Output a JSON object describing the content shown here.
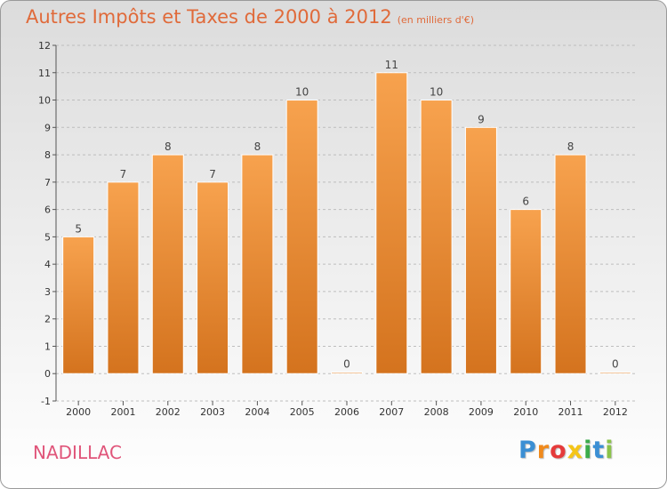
{
  "header": {
    "title": "Autres Impôts et Taxes de 2000 à 2012",
    "unit": "(en milliers d'€)"
  },
  "footer": {
    "commune": "NADILLAC",
    "brand_letters": [
      {
        "char": "P",
        "color": "#3b8fd4"
      },
      {
        "char": "r",
        "color": "#f08a1c"
      },
      {
        "char": "o",
        "color": "#e53b3b"
      },
      {
        "char": "x",
        "color": "#f5c518"
      },
      {
        "char": "i",
        "color": "#3bab4a"
      },
      {
        "char": "t",
        "color": "#3b8fd4"
      },
      {
        "char": "i",
        "color": "#8bc34a"
      }
    ]
  },
  "colors": {
    "bar_top": "#f7a24e",
    "bar_bottom": "#d4731e",
    "grid": "#bdbdbd",
    "title": "#e06a3a",
    "commune": "#e0557a"
  },
  "chart_data": {
    "type": "bar",
    "categories": [
      "2000",
      "2001",
      "2002",
      "2003",
      "2004",
      "2005",
      "2006",
      "2007",
      "2008",
      "2009",
      "2010",
      "2011",
      "2012"
    ],
    "values": [
      5,
      7,
      8,
      7,
      8,
      10,
      0,
      11,
      10,
      9,
      6,
      8,
      0
    ],
    "y_ticks": [
      -1,
      0,
      1,
      2,
      3,
      4,
      5,
      6,
      7,
      8,
      9,
      10,
      11,
      12
    ],
    "ylim": [
      -1,
      12
    ],
    "grid": true
  }
}
